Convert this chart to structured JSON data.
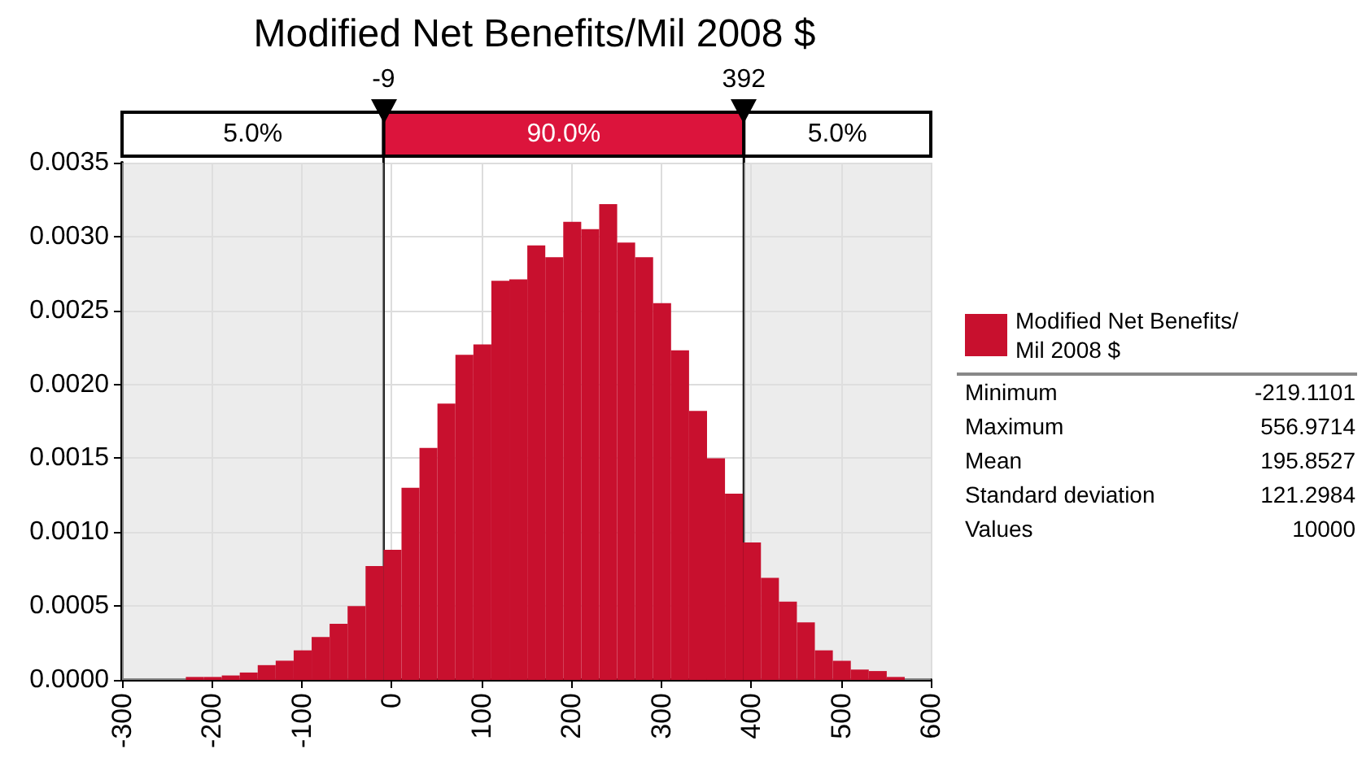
{
  "chart_data": {
    "type": "histogram",
    "title": "Modified Net Benefits/Mil 2008 $",
    "bins": [
      -229,
      -209,
      -189,
      -169,
      -149,
      -129,
      -109,
      -89,
      -69,
      -49,
      -29,
      -9,
      11,
      31,
      51,
      71,
      91,
      111,
      131,
      151,
      171,
      191,
      211,
      231,
      251,
      271,
      291,
      311,
      331,
      351,
      371,
      391,
      411,
      431,
      451,
      471,
      491,
      511,
      531,
      551,
      571
    ],
    "series": [
      {
        "name": "Modified Net Benefits/Mil 2008 $",
        "color": "#c8102e",
        "values": [
          2e-05,
          2e-05,
          3e-05,
          5e-05,
          0.0001,
          0.00013,
          0.0002,
          0.00029,
          0.00038,
          0.0005,
          0.00077,
          0.00088,
          0.0013,
          0.00157,
          0.00187,
          0.0022,
          0.00227,
          0.0027,
          0.00271,
          0.00294,
          0.00286,
          0.0031,
          0.00305,
          0.00322,
          0.00296,
          0.00286,
          0.00255,
          0.00223,
          0.00182,
          0.0015,
          0.00126,
          0.00093,
          0.00069,
          0.00053,
          0.00039,
          0.0002,
          0.00013,
          7e-05,
          6e-05,
          2e-05
        ]
      }
    ],
    "xlim": [
      -300,
      600
    ],
    "xticks": [
      -300,
      -200,
      -100,
      0,
      100,
      200,
      300,
      400,
      500,
      600
    ],
    "ylim": [
      0,
      0.0035
    ],
    "yticks": [
      {
        "value": 0,
        "label": "0.0000"
      },
      {
        "value": 0.0005,
        "label": "0.0005"
      },
      {
        "value": 0.001,
        "label": "0.0010"
      },
      {
        "value": 0.0015,
        "label": "0.0015"
      },
      {
        "value": 0.002,
        "label": "0.0020"
      },
      {
        "value": 0.0025,
        "label": "0.0025"
      },
      {
        "value": 0.003,
        "label": "0.0030"
      },
      {
        "value": 0.0035,
        "label": "0.0035"
      }
    ],
    "ref_lines": [
      {
        "axis": "x",
        "value": -9,
        "label": "-9"
      },
      {
        "axis": "x",
        "value": 392,
        "label": "392"
      }
    ],
    "bands": [
      {
        "axis": "x",
        "from": -300,
        "to": -9,
        "label": "5.0%",
        "color": "#e0e0e0"
      },
      {
        "axis": "x",
        "from": 392,
        "to": 600,
        "label": "5.0%",
        "color": "#e0e0e0"
      }
    ],
    "annotations": [
      "90.0%",
      "Minimum",
      "-219.1101",
      "Maximum",
      "556.9714",
      "Mean",
      "195.8527",
      "Standard deviation",
      "121.2984",
      "Values",
      "10000"
    ],
    "grid": true,
    "legend": "right"
  }
}
